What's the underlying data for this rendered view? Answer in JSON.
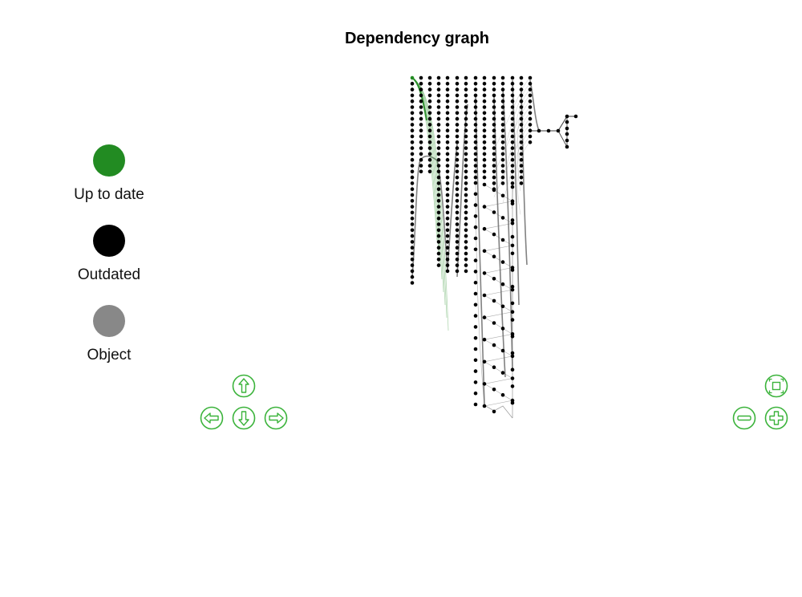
{
  "title": "Dependency graph",
  "legend": [
    {
      "label": "Up to date",
      "color": "#228b22"
    },
    {
      "label": "Outdated",
      "color": "#000000"
    },
    {
      "label": "Object",
      "color": "#888888"
    }
  ],
  "colors": {
    "accent": "#3bb33b",
    "edge": "#8a8a8a",
    "highlight": "#228b22",
    "node": "#000000"
  },
  "controls": {
    "pan_up": "arrow-up-icon",
    "pan_left": "arrow-left-icon",
    "pan_down": "arrow-down-icon",
    "pan_right": "arrow-right-icon",
    "fit": "fit-to-screen-icon",
    "zoom_out": "minus-icon",
    "zoom_in": "plus-icon"
  }
}
